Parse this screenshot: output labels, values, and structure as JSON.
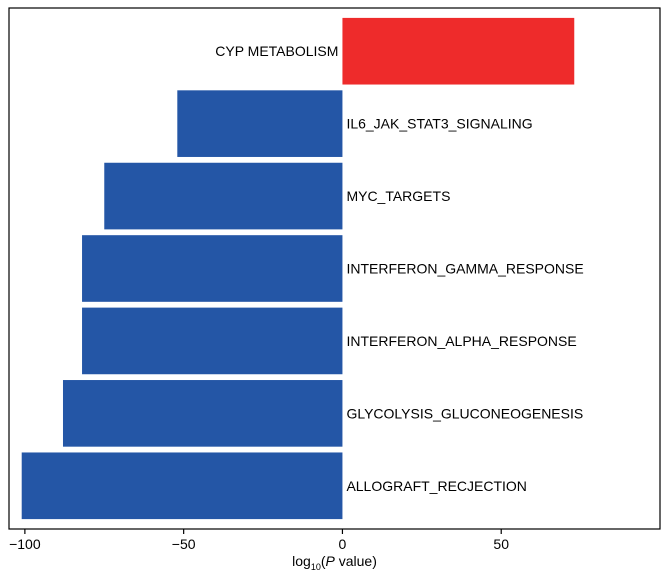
{
  "chart_data": {
    "type": "bar",
    "orientation": "horizontal",
    "categories": [
      "CYP METABOLISM",
      "IL6_JAK_STAT3_SIGNALING",
      "MYC_TARGETS",
      "INTERFERON_GAMMA_RESPONSE",
      "INTERFERON_ALPHA_RESPONSE",
      "GLYCOLYSIS_GLUCONEOGENESIS",
      "ALLOGRAFT_RECJECTION"
    ],
    "values": [
      73,
      -52,
      -75,
      -82,
      -82,
      -88,
      -101
    ],
    "xlim": [
      -105,
      100
    ],
    "xticks": [
      -100,
      -50,
      0,
      50
    ],
    "xtick_labels": [
      "−100",
      "−50",
      "0",
      "50"
    ],
    "xlabel": {
      "prefix": "log",
      "subscript": "10",
      "open": "(",
      "italic": "P",
      "suffix": " value)"
    },
    "colors": {
      "positive": "#ee2b2b",
      "negative": "#2456a6",
      "axis": "#000000"
    },
    "grid": false,
    "legend": "none"
  }
}
